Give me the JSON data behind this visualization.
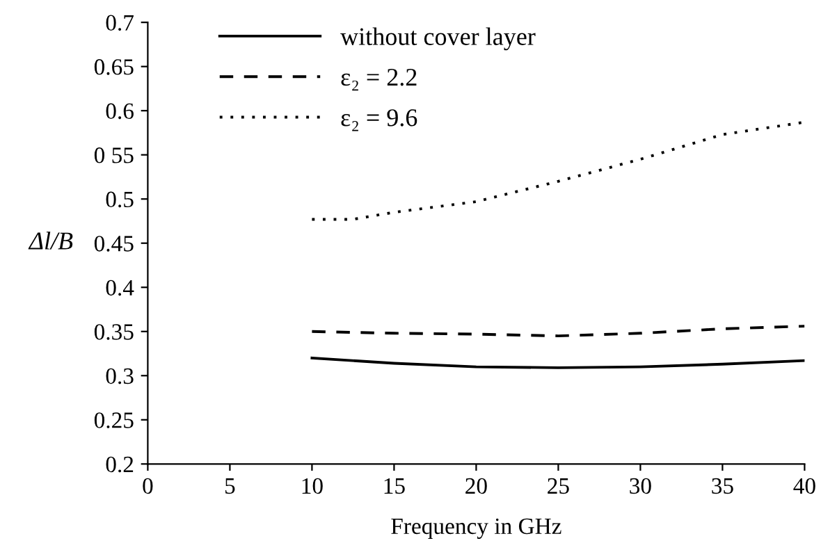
{
  "chart_data": {
    "type": "line",
    "xlabel": "Frequency in GHz",
    "ylabel": "Δl/B",
    "xlim": [
      0,
      40
    ],
    "xticks": [
      0,
      5,
      10,
      15,
      20,
      25,
      30,
      35,
      40
    ],
    "ylim": [
      0.2,
      0.7
    ],
    "yticks": [
      {
        "value": 0.2,
        "label": "0.2"
      },
      {
        "value": 0.25,
        "label": "0.25"
      },
      {
        "value": 0.3,
        "label": "0.3"
      },
      {
        "value": 0.35,
        "label": "0.35"
      },
      {
        "value": 0.4,
        "label": "0.4"
      },
      {
        "value": 0.45,
        "label": "0.45"
      },
      {
        "value": 0.5,
        "label": "0.5"
      },
      {
        "value": 0.55,
        "label": "0 55"
      },
      {
        "value": 0.6,
        "label": "0.6"
      },
      {
        "value": 0.65,
        "label": "0.65"
      },
      {
        "value": 0.7,
        "label": "0.7"
      }
    ],
    "grid": false,
    "legend": "top",
    "marker": "none",
    "series": [
      {
        "name": "without cover layer",
        "color": "#000000",
        "line_style": "solid",
        "x": [
          10,
          15,
          20,
          25,
          30,
          35,
          40
        ],
        "values": [
          0.32,
          0.314,
          0.31,
          0.309,
          0.31,
          0.313,
          0.317
        ]
      },
      {
        "name": "ε₂ = 2.2",
        "color": "#000000",
        "line_style": "dashed",
        "x": [
          10,
          15,
          20,
          25,
          30,
          35,
          40
        ],
        "values": [
          0.35,
          0.348,
          0.347,
          0.345,
          0.348,
          0.353,
          0.356
        ]
      },
      {
        "name": "ε₂ = 9.6",
        "color": "#000000",
        "line_style": "dotted",
        "x": [
          10,
          12.5,
          15,
          20,
          25,
          30,
          35,
          40
        ],
        "values": [
          0.477,
          0.477,
          0.485,
          0.497,
          0.52,
          0.545,
          0.573,
          0.587
        ]
      }
    ]
  }
}
